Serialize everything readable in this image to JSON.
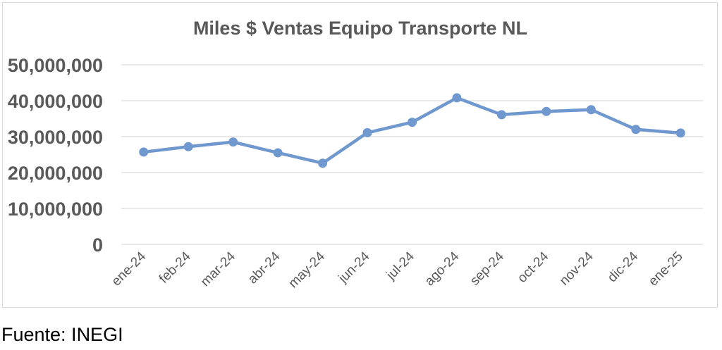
{
  "chart_data": {
    "type": "line",
    "title": "Miles $ Ventas Equipo Transporte NL",
    "xlabel": "",
    "ylabel": "",
    "categories": [
      "ene-24",
      "feb-24",
      "mar-24",
      "abr-24",
      "may-24",
      "jun-24",
      "jul-24",
      "ago-24",
      "sep-24",
      "oct-24",
      "nov-24",
      "dic-24",
      "ene-25"
    ],
    "series": [
      {
        "values": [
          25700000,
          27200000,
          28500000,
          25500000,
          22600000,
          31100000,
          34000000,
          40800000,
          36100000,
          37000000,
          37500000,
          32000000,
          31000000
        ]
      }
    ],
    "ylim": [
      0,
      50000000
    ],
    "y_ticks": [
      0,
      10000000,
      20000000,
      30000000,
      40000000,
      50000000
    ],
    "y_tick_labels": [
      "0",
      "10,000,000",
      "20,000,000",
      "30,000,000",
      "40,000,000",
      "50,000,000"
    ],
    "grid": true,
    "legend": "none",
    "colors": {
      "line": "#6f98cf",
      "grid": "#d9d9d9",
      "text": "#595959"
    }
  },
  "source_note": "Fuente: INEGI"
}
